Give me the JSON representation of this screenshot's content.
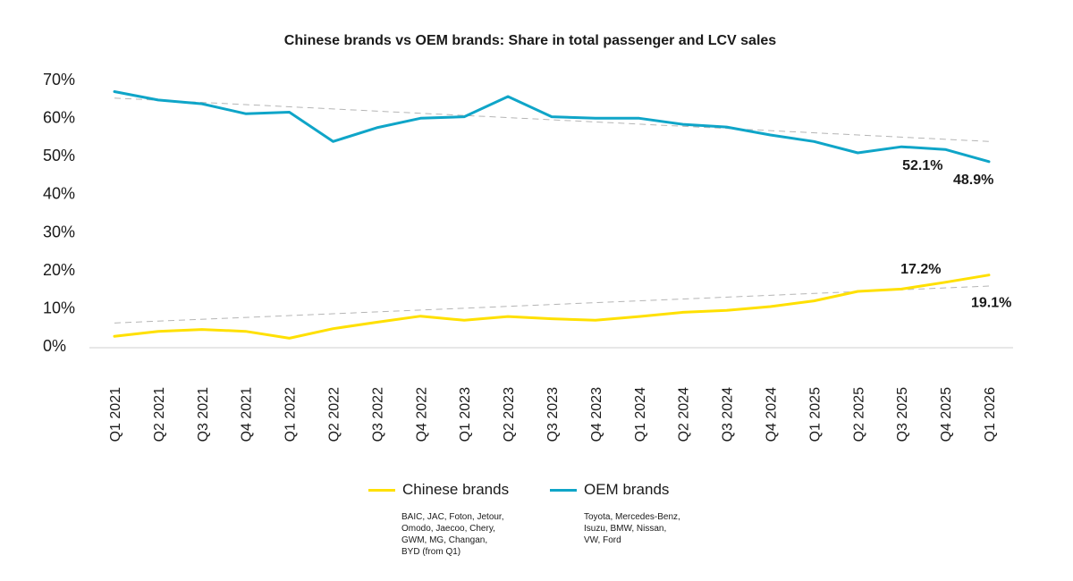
{
  "chart_data": {
    "type": "line",
    "title": "Chinese brands vs OEM brands: Share in total passenger and LCV sales",
    "xlabel": "",
    "ylabel": "",
    "categories": [
      "Q1 2021",
      "Q2 2021",
      "Q3 2021",
      "Q4 2021",
      "Q1 2022",
      "Q2 2022",
      "Q3 2022",
      "Q4 2022",
      "Q1 2023",
      "Q2 2023",
      "Q3 2023",
      "Q4 2023",
      "Q1 2024",
      "Q2 2024",
      "Q3 2024",
      "Q4 2024",
      "Q1 2025",
      "Q2 2025",
      "Q3 2025",
      "Q4 2025",
      "Q1 2026"
    ],
    "ylim": [
      0,
      70
    ],
    "yticks": [
      "0%",
      "10%",
      "20%",
      "30%",
      "40%",
      "50%",
      "60%",
      "70%"
    ],
    "series": [
      {
        "name": "Chinese brands",
        "color": "#FFE000",
        "values": [
          3.0,
          4.3,
          4.8,
          4.3,
          2.5,
          5.0,
          6.7,
          8.3,
          7.2,
          8.2,
          7.6,
          7.2,
          8.2,
          9.3,
          9.8,
          10.8,
          12.3,
          14.8,
          15.4,
          17.2,
          19.1
        ],
        "trend": [
          6.5,
          16.2
        ]
      },
      {
        "name": "OEM brands",
        "color": "#0FA5C8",
        "values": [
          67.3,
          65.1,
          64.1,
          61.5,
          61.9,
          54.2,
          57.8,
          60.3,
          60.7,
          66.0,
          60.7,
          60.3,
          60.3,
          58.7,
          58.0,
          55.9,
          54.2,
          51.2,
          52.8,
          52.1,
          48.9
        ],
        "trend": [
          65.6,
          54.2
        ]
      }
    ],
    "annotations": [
      {
        "text": "52.1%",
        "series": "OEM brands",
        "index": 19
      },
      {
        "text": "48.9%",
        "series": "OEM brands",
        "index": 20
      },
      {
        "text": "17.2%",
        "series": "Chinese brands",
        "index": 19
      },
      {
        "text": "19.1%",
        "series": "Chinese brands",
        "index": 20
      }
    ],
    "grid": false,
    "legend_position": "bottom"
  },
  "legend": [
    {
      "name": "Chinese brands",
      "note": "BAIC, JAC, Foton, Jetour,\nOmodo, Jaecoo, Chery,\nGWM, MG, Changan,\nBYD (from Q1)"
    },
    {
      "name": "OEM brands",
      "note": "Toyota, Mercedes-Benz,\nIsuzu, BMW, Nissan,\nVW, Ford"
    }
  ]
}
